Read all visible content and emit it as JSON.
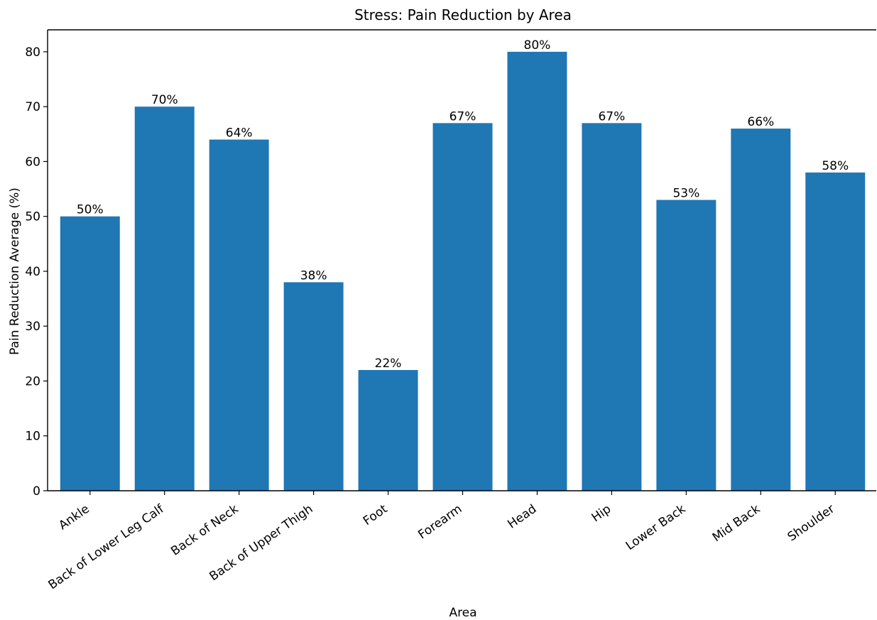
{
  "chart_data": {
    "type": "bar",
    "title": "Stress: Pain Reduction by Area",
    "xlabel": "Area",
    "ylabel": "Pain Reduction Average (%)",
    "categories": [
      "Ankle",
      "Back of Lower Leg Calf",
      "Back of Neck",
      "Back of Upper Thigh",
      "Foot",
      "Forearm",
      "Head",
      "Hip",
      "Lower Back",
      "Mid Back",
      "Shoulder"
    ],
    "values": [
      50,
      70,
      64,
      38,
      22,
      67,
      80,
      67,
      53,
      66,
      58
    ],
    "data_labels": [
      "50%",
      "70%",
      "64%",
      "38%",
      "22%",
      "67%",
      "80%",
      "67%",
      "53%",
      "66%",
      "58%"
    ],
    "ylim": [
      0,
      84
    ],
    "yticks": [
      0,
      10,
      20,
      30,
      40,
      50,
      60,
      70,
      80
    ],
    "grid": false,
    "bar_color": "#1f77b4"
  }
}
